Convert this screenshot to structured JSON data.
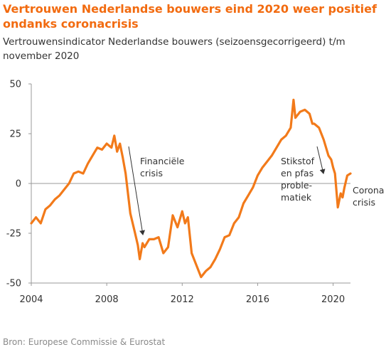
{
  "header": {
    "title": "Vertrouwen Nederlandse bouwers eind 2020 weer positief ondanks coronacrisis",
    "subtitle": "Vertrouwensindicator Nederlandse bouwers (seizoensgecorrigeerd) t/m november 2020"
  },
  "footer": {
    "source": "Bron: Europese Commissie & Eurostat"
  },
  "colors": {
    "line": "#f27a1a",
    "title": "#f26b10",
    "axis": "#999999",
    "arrow": "#333333"
  },
  "chart_data": {
    "type": "line",
    "title": "Vertrouwen Nederlandse bouwers eind 2020 weer positief ondanks coronacrisis",
    "subtitle": "Vertrouwensindicator Nederlandse bouwers (seizoensgecorrigeerd) t/m november 2020",
    "xlabel": "",
    "ylabel": "",
    "xlim": [
      2004.0,
      2020.92
    ],
    "ylim": [
      -50,
      50
    ],
    "x_ticks": [
      2004,
      2008,
      2012,
      2016,
      2020
    ],
    "x_tick_labels": [
      "2004",
      "2008",
      "2012",
      "2016",
      "2020"
    ],
    "y_ticks": [
      50,
      25,
      0,
      -25,
      -50
    ],
    "y_tick_labels": [
      "50",
      "25",
      "0",
      "-25",
      "-50"
    ],
    "grid": false,
    "zero_line": true,
    "series": [
      {
        "name": "",
        "points": [
          [
            2004.0,
            -20
          ],
          [
            2004.25,
            -17
          ],
          [
            2004.5,
            -20
          ],
          [
            2004.75,
            -13
          ],
          [
            2005.0,
            -11
          ],
          [
            2005.25,
            -8
          ],
          [
            2005.5,
            -6
          ],
          [
            2005.75,
            -3
          ],
          [
            2006.0,
            0
          ],
          [
            2006.25,
            5
          ],
          [
            2006.5,
            6
          ],
          [
            2006.75,
            5
          ],
          [
            2007.0,
            10
          ],
          [
            2007.25,
            14
          ],
          [
            2007.5,
            18
          ],
          [
            2007.75,
            17
          ],
          [
            2008.0,
            20
          ],
          [
            2008.25,
            18
          ],
          [
            2008.4,
            24
          ],
          [
            2008.55,
            16
          ],
          [
            2008.7,
            20
          ],
          [
            2008.85,
            13
          ],
          [
            2009.0,
            5
          ],
          [
            2009.25,
            -15
          ],
          [
            2009.5,
            -25
          ],
          [
            2009.65,
            -31
          ],
          [
            2009.75,
            -38
          ],
          [
            2009.9,
            -30
          ],
          [
            2010.0,
            -32
          ],
          [
            2010.25,
            -28
          ],
          [
            2010.5,
            -28
          ],
          [
            2010.75,
            -27
          ],
          [
            2011.0,
            -35
          ],
          [
            2011.25,
            -32
          ],
          [
            2011.5,
            -16
          ],
          [
            2011.75,
            -22
          ],
          [
            2012.0,
            -14
          ],
          [
            2012.15,
            -20
          ],
          [
            2012.3,
            -17
          ],
          [
            2012.5,
            -35
          ],
          [
            2012.75,
            -41
          ],
          [
            2013.0,
            -47
          ],
          [
            2013.25,
            -44
          ],
          [
            2013.5,
            -42
          ],
          [
            2013.75,
            -38
          ],
          [
            2014.0,
            -33
          ],
          [
            2014.25,
            -27
          ],
          [
            2014.5,
            -26
          ],
          [
            2014.75,
            -20
          ],
          [
            2015.0,
            -17
          ],
          [
            2015.25,
            -10
          ],
          [
            2015.5,
            -6
          ],
          [
            2015.75,
            -2
          ],
          [
            2016.0,
            4
          ],
          [
            2016.25,
            8
          ],
          [
            2016.5,
            11
          ],
          [
            2016.75,
            14
          ],
          [
            2017.0,
            18
          ],
          [
            2017.25,
            22
          ],
          [
            2017.5,
            24
          ],
          [
            2017.75,
            28
          ],
          [
            2017.9,
            42
          ],
          [
            2018.0,
            33
          ],
          [
            2018.25,
            36
          ],
          [
            2018.5,
            37
          ],
          [
            2018.75,
            35
          ],
          [
            2018.9,
            30
          ],
          [
            2019.0,
            30
          ],
          [
            2019.25,
            28
          ],
          [
            2019.5,
            22
          ],
          [
            2019.75,
            14
          ],
          [
            2019.9,
            12
          ],
          [
            2020.0,
            8
          ],
          [
            2020.1,
            5
          ],
          [
            2020.25,
            -12
          ],
          [
            2020.4,
            -5
          ],
          [
            2020.5,
            -7
          ],
          [
            2020.6,
            -2
          ],
          [
            2020.75,
            4
          ],
          [
            2020.92,
            5
          ]
        ]
      }
    ],
    "annotations": [
      {
        "text": [
          "Financiële",
          "crisis"
        ]
      },
      {
        "text": [
          "Stikstof",
          "en pfas",
          "proble-",
          "matiek"
        ]
      },
      {
        "text": [
          "Corona",
          "crisis"
        ]
      }
    ]
  }
}
